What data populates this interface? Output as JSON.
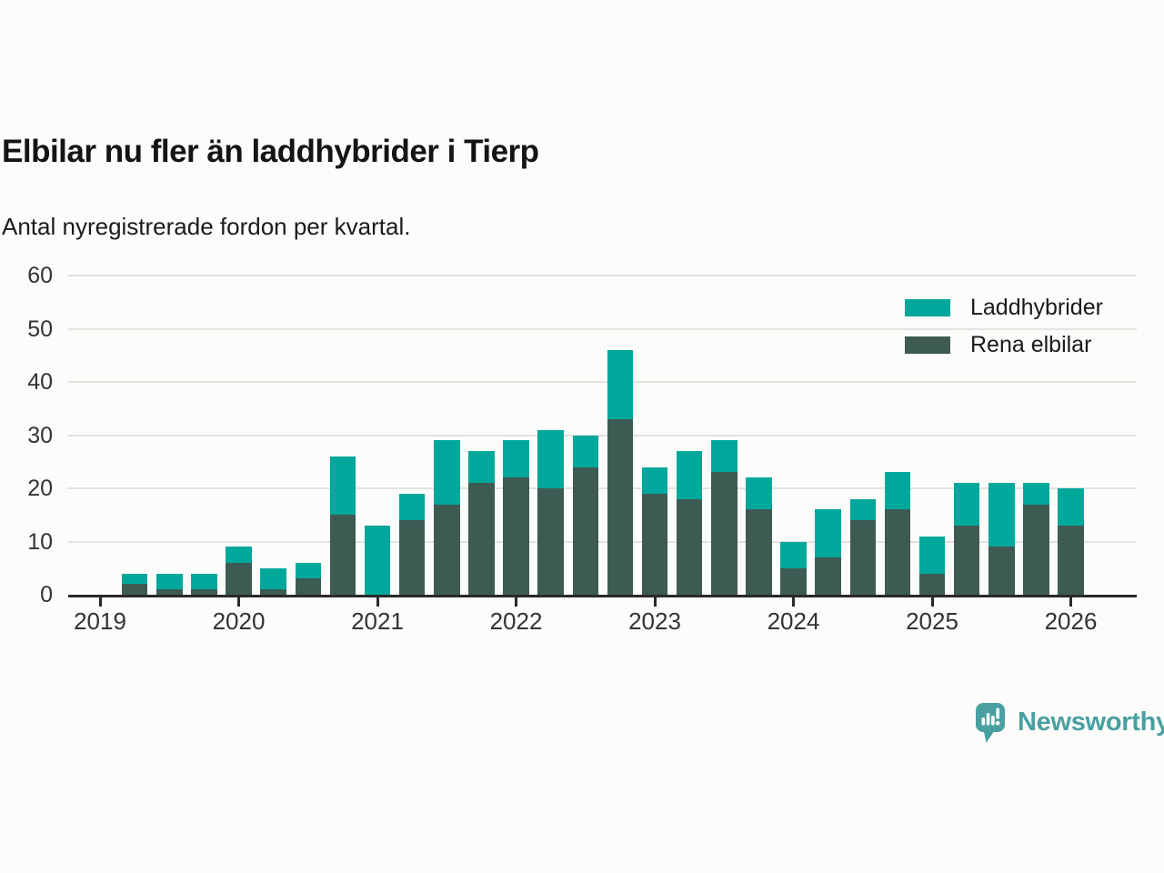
{
  "header": {
    "title": "Elbilar nu fler än laddhybrider i Tierp",
    "subtitle": "Antal nyregistrerade fordon per kvartal."
  },
  "chart_data": {
    "type": "bar",
    "stacked": true,
    "title": "Elbilar nu fler än laddhybrider i Tierp",
    "subtitle": "Antal nyregistrerade fordon per kvartal.",
    "xlabel": "",
    "ylabel": "",
    "ylim": [
      0,
      60
    ],
    "y_ticks": [
      0,
      10,
      20,
      30,
      40,
      50,
      60
    ],
    "x_tick_labels": [
      "2019",
      "2020",
      "2021",
      "2022",
      "2023",
      "2024",
      "2025",
      "2026"
    ],
    "grid": "horizontal",
    "legend_position": "top-right",
    "quarters": [
      "2019 Q2",
      "2019 Q3",
      "2019 Q4",
      "2020 Q1",
      "2020 Q2",
      "2020 Q3",
      "2020 Q4",
      "2021 Q1",
      "2021 Q2",
      "2021 Q3",
      "2021 Q4",
      "2022 Q1",
      "2022 Q2",
      "2022 Q3",
      "2022 Q4",
      "2023 Q1",
      "2023 Q2",
      "2023 Q3",
      "2023 Q4",
      "2024 Q1",
      "2024 Q2",
      "2024 Q3",
      "2024 Q4",
      "2025 Q1",
      "2025 Q2",
      "2025 Q3",
      "2025 Q4",
      "2026 Q1"
    ],
    "series": [
      {
        "name": "Laddhybrider",
        "color": "#00a79b",
        "stack": "top",
        "values": [
          2,
          3,
          3,
          3,
          4,
          3,
          11,
          13,
          5,
          12,
          6,
          7,
          11,
          6,
          13,
          5,
          9,
          6,
          6,
          5,
          9,
          4,
          7,
          7,
          8,
          12,
          4,
          7
        ]
      },
      {
        "name": "Rena elbilar",
        "color": "#3d5b53",
        "stack": "bottom",
        "values": [
          2,
          1,
          1,
          6,
          1,
          3,
          15,
          0,
          14,
          17,
          21,
          22,
          20,
          24,
          33,
          19,
          18,
          23,
          16,
          5,
          7,
          14,
          16,
          4,
          13,
          9,
          17,
          13
        ]
      }
    ]
  },
  "footer": {
    "brand": "Newsworthy",
    "brand_color": "#4aa0a1",
    "logo_icon": "newsworthy-speech-bubble-bar-chart-icon"
  }
}
